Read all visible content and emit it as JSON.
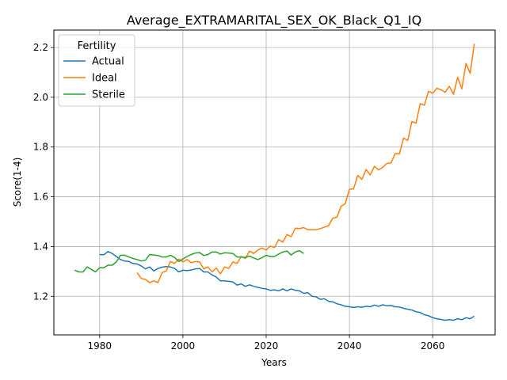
{
  "chart_data": {
    "type": "line",
    "title": "Average_EXTRAMARITAL_SEX_OK_Black_Q1_IQ",
    "xlabel": "Years",
    "ylabel": "Score(1-4)",
    "xlim": [
      1969,
      2075
    ],
    "ylim": [
      1.045,
      2.27
    ],
    "xticks": [
      1980,
      2000,
      2020,
      2040,
      2060
    ],
    "yticks": [
      1.2,
      1.4,
      1.6,
      1.8,
      2.0,
      2.2
    ],
    "grid": true,
    "legend": {
      "title": "Fertility",
      "position": "upper left"
    },
    "series": [
      {
        "name": "Actual",
        "color": "#1f77b4",
        "x": [
          1980,
          1981,
          1982,
          1983,
          1984,
          1985,
          1986,
          1987,
          1988,
          1989,
          1990,
          1991,
          1992,
          1993,
          1994,
          1995,
          1996,
          1997,
          1998,
          1999,
          2000,
          2001,
          2002,
          2003,
          2004,
          2005,
          2006,
          2007,
          2008,
          2009,
          2010,
          2011,
          2012,
          2013,
          2014,
          2015,
          2016,
          2017,
          2018,
          2019,
          2020,
          2021,
          2022,
          2023,
          2024,
          2025,
          2026,
          2027,
          2028,
          2029,
          2030,
          2031,
          2032,
          2033,
          2034,
          2035,
          2036,
          2037,
          2038,
          2039,
          2040,
          2041,
          2042,
          2043,
          2044,
          2045,
          2046,
          2047,
          2048,
          2049,
          2050,
          2051,
          2052,
          2053,
          2054,
          2055,
          2056,
          2057,
          2058,
          2059,
          2060,
          2061,
          2062,
          2063,
          2064,
          2065,
          2066,
          2067,
          2068,
          2069,
          2070
        ],
        "values": [
          1.368,
          1.367,
          1.38,
          1.372,
          1.36,
          1.348,
          1.342,
          1.34,
          1.332,
          1.33,
          1.322,
          1.31,
          1.318,
          1.302,
          1.312,
          1.317,
          1.32,
          1.318,
          1.312,
          1.298,
          1.305,
          1.303,
          1.306,
          1.31,
          1.312,
          1.298,
          1.298,
          1.286,
          1.278,
          1.262,
          1.262,
          1.26,
          1.258,
          1.245,
          1.25,
          1.24,
          1.246,
          1.24,
          1.236,
          1.232,
          1.23,
          1.224,
          1.226,
          1.222,
          1.23,
          1.222,
          1.23,
          1.224,
          1.222,
          1.212,
          1.215,
          1.2,
          1.198,
          1.188,
          1.19,
          1.18,
          1.178,
          1.17,
          1.166,
          1.16,
          1.158,
          1.155,
          1.158,
          1.156,
          1.16,
          1.158,
          1.165,
          1.16,
          1.166,
          1.162,
          1.163,
          1.158,
          1.157,
          1.152,
          1.148,
          1.145,
          1.138,
          1.135,
          1.126,
          1.122,
          1.114,
          1.11,
          1.107,
          1.104,
          1.106,
          1.104,
          1.11,
          1.106,
          1.114,
          1.11,
          1.12
        ]
      },
      {
        "name": "Ideal",
        "color": "#ff7f0e",
        "x": [
          1989,
          1990,
          1991,
          1992,
          1993,
          1994,
          1995,
          1996,
          1997,
          1998,
          1999,
          2000,
          2001,
          2002,
          2003,
          2004,
          2005,
          2006,
          2007,
          2008,
          2009,
          2010,
          2011,
          2012,
          2013,
          2014,
          2015,
          2016,
          2017,
          2018,
          2019,
          2020,
          2021,
          2022,
          2023,
          2024,
          2025,
          2026,
          2027,
          2028,
          2029,
          2030,
          2031,
          2032,
          2033,
          2034,
          2035,
          2036,
          2037,
          2038,
          2039,
          2040,
          2041,
          2042,
          2043,
          2044,
          2045,
          2046,
          2047,
          2048,
          2049,
          2050,
          2051,
          2052,
          2053,
          2054,
          2055,
          2056,
          2057,
          2058,
          2059,
          2060,
          2061,
          2062,
          2063,
          2064,
          2065,
          2066,
          2067,
          2068,
          2069,
          2070
        ],
        "values": [
          1.295,
          1.272,
          1.268,
          1.255,
          1.262,
          1.255,
          1.295,
          1.302,
          1.34,
          1.332,
          1.35,
          1.338,
          1.348,
          1.335,
          1.34,
          1.338,
          1.31,
          1.318,
          1.298,
          1.314,
          1.29,
          1.318,
          1.312,
          1.338,
          1.332,
          1.36,
          1.352,
          1.382,
          1.372,
          1.386,
          1.394,
          1.386,
          1.402,
          1.396,
          1.428,
          1.418,
          1.448,
          1.44,
          1.474,
          1.472,
          1.476,
          1.468,
          1.468,
          1.468,
          1.472,
          1.478,
          1.484,
          1.514,
          1.518,
          1.562,
          1.572,
          1.63,
          1.632,
          1.686,
          1.67,
          1.71,
          1.688,
          1.722,
          1.708,
          1.718,
          1.734,
          1.736,
          1.774,
          1.772,
          1.836,
          1.826,
          1.902,
          1.896,
          1.974,
          1.968,
          2.024,
          2.016,
          2.036,
          2.03,
          2.02,
          2.044,
          2.012,
          2.08,
          2.034,
          2.136,
          2.096,
          2.215
        ]
      },
      {
        "name": "Sterile",
        "color": "#2ca02c",
        "x": [
          1974,
          1975,
          1976,
          1977,
          1978,
          1979,
          1980,
          1981,
          1982,
          1983,
          1984,
          1985,
          1986,
          1987,
          1988,
          1989,
          1990,
          1991,
          1992,
          1993,
          1994,
          1995,
          1996,
          1997,
          1998,
          1999,
          2000,
          2001,
          2002,
          2003,
          2004,
          2005,
          2006,
          2007,
          2008,
          2009,
          2010,
          2011,
          2012,
          2013,
          2014,
          2015,
          2016,
          2017,
          2018,
          2019,
          2020,
          2021,
          2022,
          2023,
          2024,
          2025,
          2026,
          2027,
          2028,
          2029
        ],
        "values": [
          1.305,
          1.298,
          1.298,
          1.318,
          1.308,
          1.298,
          1.315,
          1.315,
          1.325,
          1.325,
          1.338,
          1.365,
          1.365,
          1.358,
          1.352,
          1.348,
          1.342,
          1.345,
          1.368,
          1.366,
          1.364,
          1.358,
          1.358,
          1.365,
          1.356,
          1.34,
          1.35,
          1.36,
          1.368,
          1.374,
          1.376,
          1.364,
          1.368,
          1.378,
          1.378,
          1.37,
          1.375,
          1.374,
          1.372,
          1.358,
          1.358,
          1.356,
          1.362,
          1.354,
          1.348,
          1.355,
          1.365,
          1.36,
          1.36,
          1.37,
          1.378,
          1.382,
          1.366,
          1.378,
          1.384,
          1.372
        ]
      }
    ]
  }
}
